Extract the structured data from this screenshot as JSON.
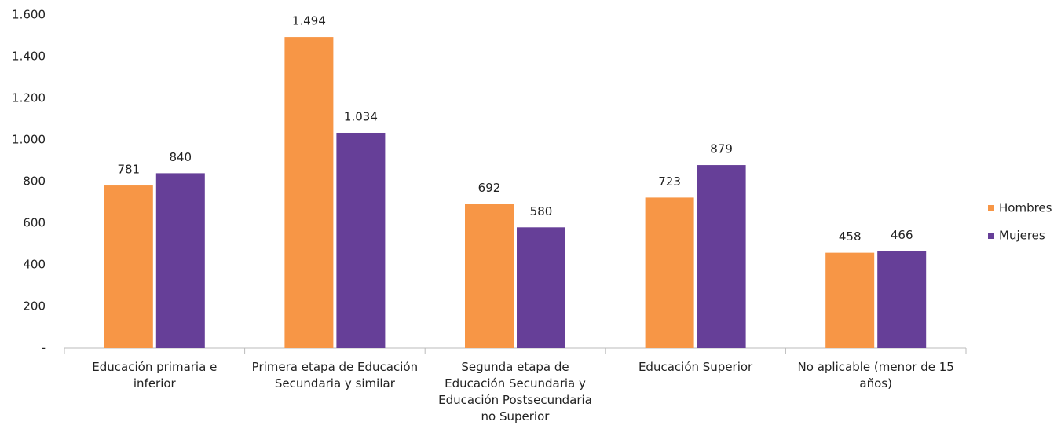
{
  "chart_data": {
    "type": "bar",
    "categories": [
      "Educación primaria e inferior",
      "Primera etapa de Educación Secundaria y similar",
      "Segunda etapa de Educación Secundaria y Educación Postsecundaria no Superior",
      "Educación Superior",
      "No aplicable (menor de 15 años)"
    ],
    "series": [
      {
        "name": "Hombres",
        "color": "#f79646",
        "values": [
          781,
          1494,
          692,
          723,
          458
        ],
        "value_labels": [
          "781",
          "1.494",
          "692",
          "723",
          "458"
        ]
      },
      {
        "name": "Mujeres",
        "color": "#663f98",
        "values": [
          840,
          1034,
          580,
          879,
          466
        ],
        "value_labels": [
          "840",
          "1.034",
          "580",
          "879",
          "466"
        ]
      }
    ],
    "ylim": [
      0,
      1600
    ],
    "yticks": [
      {
        "value": 0,
        "label": "-"
      },
      200,
      400,
      600,
      800,
      {
        "value": 1000,
        "label": "1.000"
      },
      {
        "value": 1200,
        "label": "1.200"
      },
      {
        "value": 1400,
        "label": "1.400"
      },
      {
        "value": 1600,
        "label": "1.600"
      }
    ],
    "legend": "right"
  }
}
